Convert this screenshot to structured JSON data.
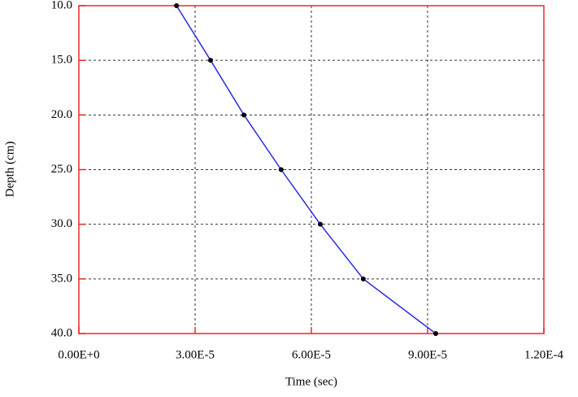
{
  "chart_data": {
    "type": "line",
    "xlabel": "Time  (sec)",
    "ylabel": "Depth (cm)",
    "x": [
      2.52e-05,
      3.4e-05,
      4.26e-05,
      5.22e-05,
      6.23e-05,
      7.34e-05,
      9.21e-05
    ],
    "values": [
      10,
      15,
      20,
      25,
      30,
      35,
      40
    ],
    "color": "#2a2ae6",
    "marker_color": "#000000",
    "axis_color": "#e8282b",
    "xlim": [
      0,
      0.00012
    ],
    "xticks": [
      {
        "value": 0,
        "label": "0.00E+0"
      },
      {
        "value": 3e-05,
        "label": "3.00E-5"
      },
      {
        "value": 6e-05,
        "label": "6.00E-5"
      },
      {
        "value": 9e-05,
        "label": "9.00E-5"
      },
      {
        "value": 0.00012,
        "label": "1.20E-4"
      }
    ],
    "ylim": [
      10,
      40
    ],
    "y_inverted": true,
    "yticks": [
      {
        "value": 10,
        "label": "10.0"
      },
      {
        "value": 15,
        "label": "15.0"
      },
      {
        "value": 20,
        "label": "20.0"
      },
      {
        "value": 25,
        "label": "25.0"
      },
      {
        "value": 30,
        "label": "30.0"
      },
      {
        "value": 35,
        "label": "35.0"
      },
      {
        "value": 40,
        "label": "40.0"
      }
    ],
    "grid": true
  }
}
